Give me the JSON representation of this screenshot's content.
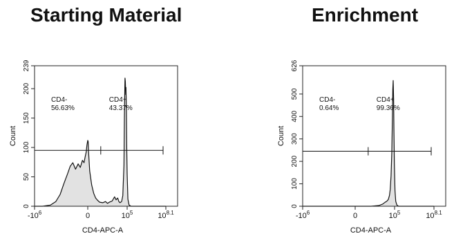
{
  "chart_data": [
    {
      "type": "histogram",
      "title": "Starting Material",
      "xlabel": "CD4-APC-A",
      "ylabel": "Count",
      "x_scale": "biexponential",
      "x_ticks": [
        {
          "label": "-10",
          "sup": "6",
          "pos": -1
        },
        {
          "label": "0",
          "sup": "",
          "pos": 0
        },
        {
          "label": "10",
          "sup": "5",
          "pos": 1
        },
        {
          "label": "10",
          "sup": "8.1",
          "pos": 2
        }
      ],
      "ylim": [
        0,
        239
      ],
      "y_ticks": [
        0,
        50,
        100,
        150,
        200,
        239
      ],
      "gate_y": 95,
      "gate_divider_pos": 0.33,
      "gates": [
        {
          "name": "CD4-",
          "percent": "56.63%"
        },
        {
          "name": "CD4+",
          "percent": "43.37%"
        }
      ],
      "histogram": [
        [
          -1.0,
          0
        ],
        [
          -0.85,
          0
        ],
        [
          -0.7,
          2
        ],
        [
          -0.6,
          8
        ],
        [
          -0.52,
          20
        ],
        [
          -0.45,
          38
        ],
        [
          -0.38,
          55
        ],
        [
          -0.33,
          68
        ],
        [
          -0.28,
          74
        ],
        [
          -0.23,
          63
        ],
        [
          -0.18,
          72
        ],
        [
          -0.14,
          66
        ],
        [
          -0.1,
          78
        ],
        [
          -0.07,
          74
        ],
        [
          -0.05,
          84
        ],
        [
          -0.03,
          92
        ],
        [
          -0.015,
          104
        ],
        [
          0.0,
          112
        ],
        [
          0.01,
          110
        ],
        [
          0.02,
          94
        ],
        [
          0.05,
          60
        ],
        [
          0.1,
          36
        ],
        [
          0.15,
          22
        ],
        [
          0.2,
          14
        ],
        [
          0.25,
          10
        ],
        [
          0.3,
          7
        ],
        [
          0.38,
          6
        ],
        [
          0.45,
          8
        ],
        [
          0.5,
          5
        ],
        [
          0.55,
          7
        ],
        [
          0.62,
          9
        ],
        [
          0.68,
          16
        ],
        [
          0.72,
          11
        ],
        [
          0.76,
          14
        ],
        [
          0.79,
          8
        ],
        [
          0.82,
          6
        ],
        [
          0.86,
          8
        ],
        [
          0.89,
          18
        ],
        [
          0.92,
          70
        ],
        [
          0.93,
          150
        ],
        [
          0.94,
          200
        ],
        [
          0.945,
          218
        ],
        [
          0.955,
          212
        ],
        [
          0.965,
          190
        ],
        [
          0.97,
          202
        ],
        [
          0.98,
          165
        ],
        [
          0.99,
          100
        ],
        [
          1.0,
          55
        ],
        [
          1.02,
          12
        ],
        [
          1.05,
          2
        ],
        [
          1.1,
          0
        ],
        [
          2.0,
          0
        ]
      ]
    },
    {
      "type": "histogram",
      "title": "Enrichment",
      "xlabel": "CD4-APC-A",
      "ylabel": "Count",
      "x_scale": "biexponential",
      "x_ticks": [
        {
          "label": "-10",
          "sup": "6",
          "pos": -1
        },
        {
          "label": "0",
          "sup": "",
          "pos": 0
        },
        {
          "label": "10",
          "sup": "5",
          "pos": 1
        },
        {
          "label": "10",
          "sup": "8.1",
          "pos": 2
        }
      ],
      "ylim": [
        0,
        626
      ],
      "y_ticks": [
        0,
        100,
        200,
        300,
        400,
        500,
        626
      ],
      "gate_y": 245,
      "gate_divider_pos": 0.33,
      "gates": [
        {
          "name": "CD4-",
          "percent": "0.64%"
        },
        {
          "name": "CD4+",
          "percent": "99.36%"
        }
      ],
      "histogram": [
        [
          -1.0,
          0
        ],
        [
          0.4,
          0
        ],
        [
          0.6,
          3
        ],
        [
          0.7,
          10
        ],
        [
          0.76,
          18
        ],
        [
          0.8,
          22
        ],
        [
          0.84,
          30
        ],
        [
          0.87,
          48
        ],
        [
          0.89,
          75
        ],
        [
          0.91,
          135
        ],
        [
          0.93,
          240
        ],
        [
          0.945,
          400
        ],
        [
          0.955,
          520
        ],
        [
          0.965,
          560
        ],
        [
          0.975,
          480
        ],
        [
          0.985,
          330
        ],
        [
          0.995,
          190
        ],
        [
          1.01,
          70
        ],
        [
          1.03,
          22
        ],
        [
          1.06,
          5
        ],
        [
          1.1,
          0
        ],
        [
          2.0,
          0
        ]
      ]
    }
  ]
}
